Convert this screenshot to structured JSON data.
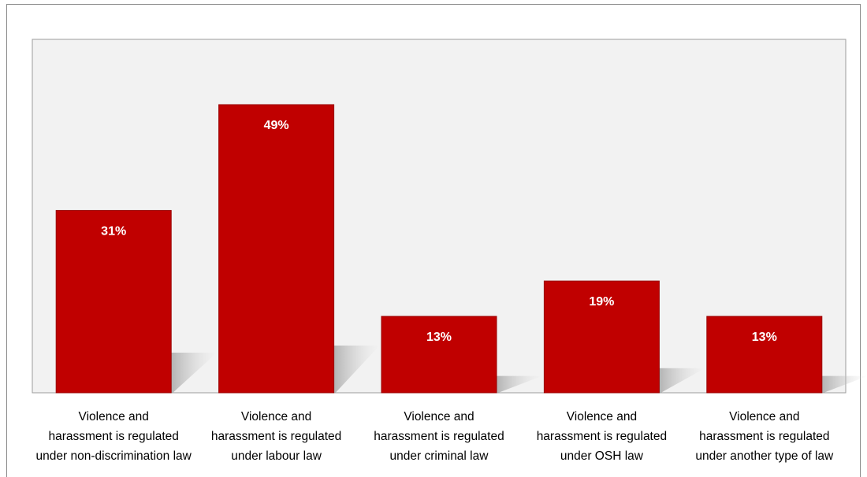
{
  "chart_data": {
    "type": "bar",
    "categories": [
      [
        "Violence and",
        "harassment is regulated",
        "under non-discrimination law"
      ],
      [
        "Violence and",
        "harassment is regulated",
        "under labour law"
      ],
      [
        "Violence and",
        "harassment is regulated",
        "under criminal law"
      ],
      [
        "Violence and",
        "harassment is regulated",
        "under OSH law"
      ],
      [
        "Violence and",
        "harassment is regulated",
        "under another type of law"
      ]
    ],
    "values": [
      31,
      49,
      13,
      19,
      13
    ],
    "data_labels": [
      "31%",
      "49%",
      "13%",
      "19%",
      "13%"
    ],
    "title": "",
    "xlabel": "",
    "ylabel": "",
    "ylim": [
      0,
      60
    ],
    "grid": false,
    "legend": "none",
    "colors": {
      "bar": "#c00000",
      "bar_edge": "#9a0000",
      "plot_background": "#f2f2f2",
      "shadow": "#b8b8b8"
    }
  }
}
